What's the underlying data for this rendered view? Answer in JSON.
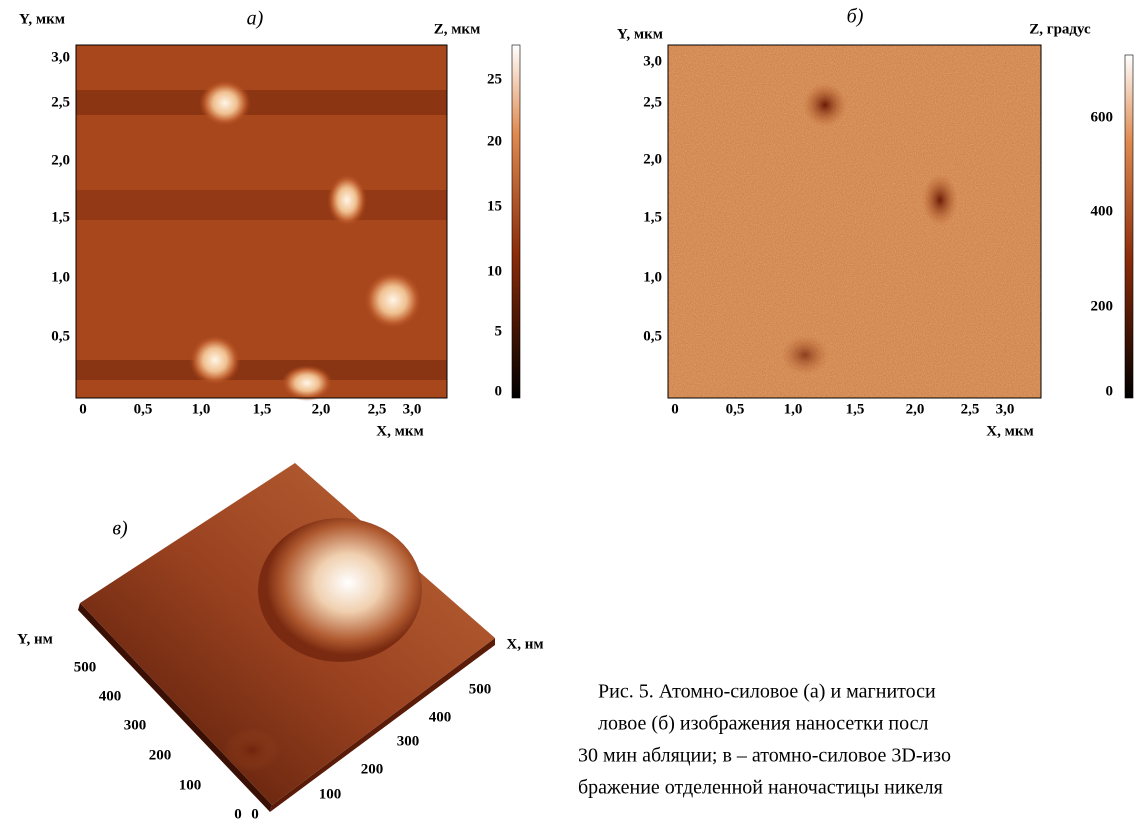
{
  "panels": [
    {
      "label": "а)",
      "y_axis_label": "Y, мкм",
      "x_axis_label": "X, мкм",
      "z_axis_label": "Z, мкм",
      "y_ticks": [
        "3,0",
        "2,5",
        "2,0",
        "1,5",
        "1,0",
        "0,5"
      ],
      "x_ticks": [
        "0",
        "0,5",
        "1,0",
        "1,5",
        "2,0",
        "2,5",
        "3,0"
      ],
      "z_ticks": [
        "25",
        "20",
        "15",
        "10",
        "5",
        "0"
      ]
    },
    {
      "label": "б)",
      "y_axis_label": "Y, мкм",
      "x_axis_label": "X, мкм",
      "z_axis_label": "Z, градус",
      "y_ticks": [
        "3,0",
        "2,5",
        "2,0",
        "1,5",
        "1,0",
        "0,5"
      ],
      "x_ticks": [
        "0",
        "0,5",
        "1,0",
        "1,5",
        "2,0",
        "2,5",
        "3,0"
      ],
      "z_ticks": [
        "600",
        "400",
        "200",
        "0"
      ]
    },
    {
      "label": "в)",
      "y_axis_label": "Y, нм",
      "x_axis_label": "X, нм",
      "y_ticks": [
        "500",
        "400",
        "300",
        "200",
        "100",
        "0"
      ],
      "x_ticks": [
        "500",
        "400",
        "300",
        "200",
        "100",
        "0"
      ]
    }
  ],
  "caption": [
    "Рис. 5. Атомно-силовое (а) и магнитоси",
    "ловое (б) изображения наносетки посл",
    "30 мин абляции; в – атомно-силовое 3D-изо",
    "бражение отделенной наночастицы никеля"
  ]
}
